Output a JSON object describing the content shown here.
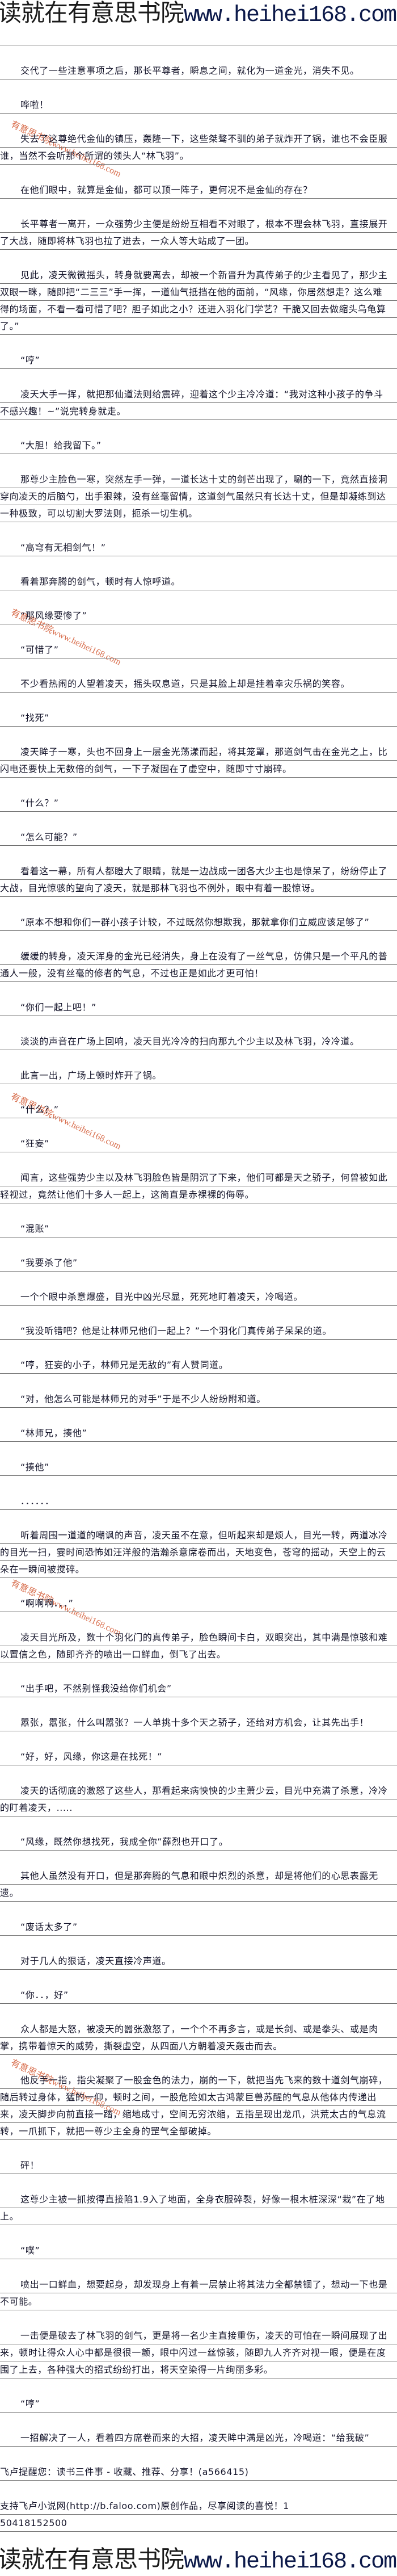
{
  "banner": {
    "site_cn": "读就在有意思书院",
    "site_url": "www.heihei168.com"
  },
  "watermark": "有意思书院www.heihei168.com",
  "paragraphs": [
    "交代了一些注意事项之后，那长平尊者，瞬息之间，就化为一道金光，消失不见。",
    "哗啦！",
    "失去了这尊绝代金仙的镇压，轰隆一下，这些桀骜不驯的弟子就炸开了锅，谁也不会臣服谁，当然不会听那个所谓的领头人“林飞羽”。",
    "在他们眼中，就算是金仙，都可以顶一阵子，更何况不是金仙的存在？",
    "长平尊者一离开，一众强势少主便是纷纷互相看不对眼了，根本不理会林飞羽，直接展开了大战，随即将林飞羽也拉了进去，一众人等大站成了一团。",
    "见此，凌天微微摇头，转身就要离去，却被一个新晋升为真传弟子的少主看见了，那少主双眼一眯，随即把“二三三”手一挥，一道仙气抵挡在他的面前，“风缘，你居然想走？这么难得的场面，不看一看可惜了吧？胆子如此之小？还进入羽化门学艺？干脆又回去做缩头乌龟算了。”",
    "“哼”",
    "凌天大手一挥，就把那仙道法则给震碎，迎着这个少主冷冷道：“我对这种小孩子的争斗不感兴趣！~”说完转身就走。",
    "“大胆！给我留下。”",
    "那尊少主脸色一寒，突然左手一弹，一道长达十丈的剑芒出现了，唰的一下，竟然直接洞穿向凌天的后脑勺，出手狠辣，没有丝毫留情，这道剑气虽然只有长达十丈，但是却凝练到达一种极致，可以切割大罗法则，扼杀一切生机。",
    "“高穹有无相剑气！”",
    "看着那奔腾的剑气，顿时有人惊呼道。",
    "“那风缘要惨了”",
    "“可惜了”",
    "不少看热闹的人望着凌天，摇头叹息道，只是其脸上却是挂着幸灾乐祸的笑容。",
    "“找死”",
    "凌天眸子一寒，头也不回身上一层金光荡漾而起，将其笼罩，那道剑气击在金光之上，比闪电还要快上无数倍的剑气，一下子凝固在了虚空中，随即寸寸崩碎。",
    "“什么？”",
    "“怎么可能？”",
    "看着这一幕，所有人都瞪大了眼睛，就是一边战成一团各大少主也是惊呆了，纷纷停止了大战，目光惊骇的望向了凌天，就是那林飞羽也不例外，眼中有着一股惊讶。",
    "“原本不想和你们一群小孩子计较，不过既然你想欺我，那就拿你们立威应该足够了”",
    "缓缓的转身，凌天浑身的金光已经消失，身上在没有了一丝气息，仿佛只是一个平凡的普通人一般，没有丝毫的修者的气息，不过也正是如此才更可怕！",
    "“你们一起上吧！”",
    "淡淡的声音在广场上回响，凌天目光冷冷的扫向那九个少主以及林飞羽，冷冷道。",
    "此言一出，广场上顿时炸开了锅。",
    "“什么？”",
    "“狂妄”",
    "闻言，这些强势少主以及林飞羽脸色皆是阴沉了下来，他们可都是天之骄子，何曾被如此轻视过，竟然让他们十多人一起上，这简直是赤裸裸的侮辱。",
    "“混账”",
    "“我要杀了他”",
    "一个个眼中杀意爆盛，目光中凶光尽显，死死地盯着凌天，冷喝道。",
    "“我没听错吧？他是让林师兄他们一起上？”一个羽化门真传弟子呆呆的道。",
    "“哼，狂妄的小子，林师兄是无敌的”有人赞同道。",
    "“对，他怎么可能是林师兄的对手”于是不少人纷纷附和道。",
    "“林师兄，揍他”",
    "“揍他”",
    "．．．．．．",
    "听着周围一道道的嘲讽的声音，凌天虽不在意，但听起来却是烦人，目光一转，两道冰冷的目光一扫，霎时间恐怖如汪洋般的浩瀚杀意席卷而出，天地变色，苍穹的摇动，天空上的云朵在一瞬间被搅碎。",
    "“啊啊啊．．．”",
    "凌天目光所及，数十个羽化门的真传弟子，脸色瞬间卡白，双眼突出，其中满是惊骇和难以置信之色，随即齐齐的喷出一口鲜血，倒飞了出去。",
    "“出手吧，不然别怪我没给你们机会”",
    "嚣张，嚣张，什么叫嚣张？一人单挑十多个天之骄子，还给对方机会，让其先出手！",
    "“好，好，风缘，你这是在找死！”",
    "凌天的话彻底的激怒了这些人，那看起来病怏怏的少主萧少云，目光中充满了杀意，冷冷的盯着凌天，.....",
    "“风缘，既然你想找死，我成全你”薛烈也开口了。",
    "其他人虽然没有开口，但是那奔腾的气息和眼中炽烈的杀意，却是将他们的心思表露无遗。",
    "“废话太多了”",
    "对于几人的狠话，凌天直接冷声道。",
    "“你．．，好”",
    "众人都是大怒，被凌天的嚣张激怒了，一个个不再多言，或是长剑、或是拳头、或是肉掌，携带着惊天的威势，撕裂虚空，从四面八方朝着凌天轰击而去。",
    "他反手一指，指尖凝聚了一股金色的法力，崩的一下，就把当先飞来的数十道剑气崩碎，随后转过身体，猛的一仰，顿时之间，一股危险如太古鸿蒙巨兽苏醒的气息从他体内传递出来，凌天脚步向前直接一踏，缩地成寸，空间无穷浓缩，五指呈现出龙爪，洪荒太古的气息流转，一爪抓下，就把一尊少主全身的罡气全部破掉。",
    "砰！",
    "这尊少主被一抓按得直接陷1.9入了地面，全身衣服碎裂，好像一根木桩深深“栽”在了地上。",
    "“噗”",
    "喷出一口鲜血，想要起身，却发现身上有着一层禁止将其法力全都禁锢了，想动一下也是不可能。",
    "一击便是破去了林飞羽的剑气，更是将一名少主直接重伤，凌天的可怕在一瞬间展现了出来，顿时让得众人心中都是很很一颤，眼中闪过一丝惊骇，随即九人齐齐对视一眼，便是在度围了上去，各种强大的招式纷纷打出，将天空染得一片绚丽多彩。",
    "“哼”",
    "一招解决了一人，看着四方席卷而来的大招，凌天眸中满是凶光，冷喝道：“给我破”"
  ],
  "footer": {
    "reminder": "飞卢提醒您：读书三件事 - 收藏、推荐、分享！(a566415)",
    "support": "支持飞卢小说网(http://b.faloo.com)原创作品，尽享阅读的喜悦！150418152500"
  },
  "colors": {
    "text": "#14142a",
    "rule": "#6e6e6e",
    "watermark": "#d2552e",
    "url": "#0d1a4a"
  }
}
